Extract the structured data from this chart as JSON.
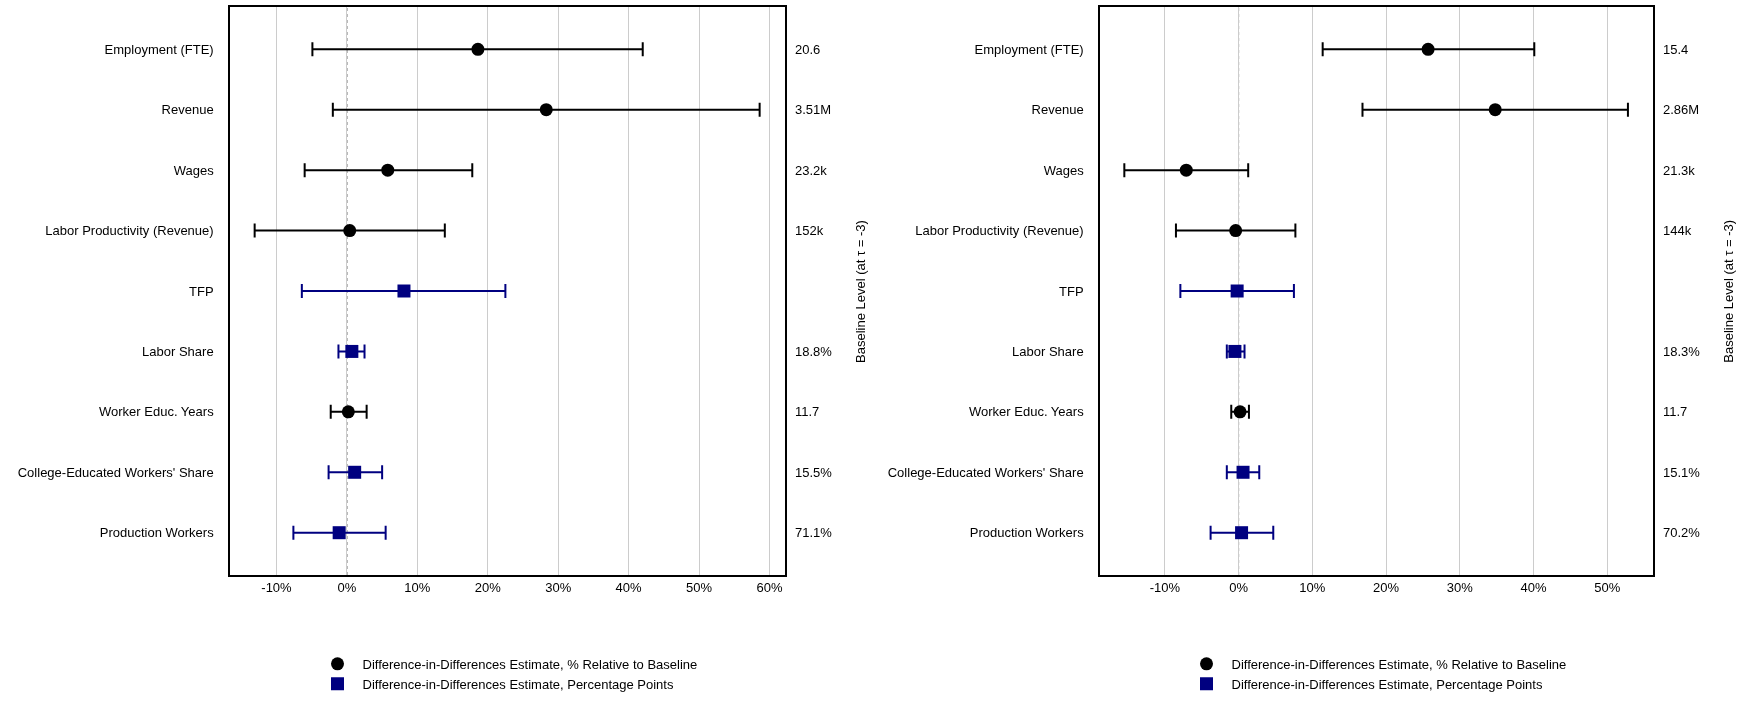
{
  "chart_data": [
    {
      "type": "scatter",
      "orientation": "horizontal",
      "categories": [
        "Employment (FTE)",
        "Revenue",
        "Wages",
        "Labor Productivity (Revenue)",
        "TFP",
        "Labor Share",
        "Worker Educ. Years",
        "College-Educated Workers' Share",
        "Production Workers"
      ],
      "series": [
        {
          "name": "Difference-in-Differences Estimate, % Relative to Baseline",
          "color": "#000000",
          "marker": "circle",
          "values": [
            18.6,
            28.3,
            5.8,
            0.4,
            null,
            null,
            0.2,
            null,
            null
          ],
          "errors": [
            [
              -4.9,
              42.0
            ],
            [
              -2.0,
              58.6
            ],
            [
              -6.0,
              17.8
            ],
            [
              -13.1,
              13.9
            ],
            null,
            null,
            [
              -2.3,
              2.8
            ],
            null,
            null
          ]
        },
        {
          "name": "Difference-in-Differences Estimate, Percentage Points",
          "color": "#000080",
          "marker": "square",
          "values": [
            null,
            null,
            null,
            null,
            8.1,
            0.7,
            null,
            1.1,
            -1.1
          ],
          "errors": [
            null,
            null,
            null,
            null,
            [
              -6.4,
              22.5
            ],
            [
              -1.2,
              2.5
            ],
            null,
            [
              -2.6,
              5.0
            ],
            [
              -7.6,
              5.5
            ]
          ]
        }
      ],
      "xlim": [
        -16.6,
        62.2
      ],
      "xticks": [
        {
          "value": -10,
          "label": "-10%"
        },
        {
          "value": 0,
          "label": "0%"
        },
        {
          "value": 10,
          "label": "10%"
        },
        {
          "value": 20,
          "label": "20%"
        },
        {
          "value": 30,
          "label": "30%"
        },
        {
          "value": 40,
          "label": "40%"
        },
        {
          "value": 50,
          "label": "50%"
        },
        {
          "value": 60,
          "label": "60%"
        }
      ],
      "ref_lines": [
        {
          "axis": "x",
          "value": 0,
          "color": "#555555",
          "line_style": "dotted"
        }
      ],
      "y2label": "Baseline Level (at τ = -3)",
      "y2_categories": [
        "20.6",
        "3.51M",
        "23.2k",
        "152k",
        null,
        "18.8%",
        "11.7",
        "15.5%",
        "71.1%"
      ],
      "grid": "x",
      "legend": "bottom"
    },
    {
      "type": "scatter",
      "orientation": "horizontal",
      "categories": [
        "Employment (FTE)",
        "Revenue",
        "Wages",
        "Labor Productivity (Revenue)",
        "TFP",
        "Labor Share",
        "Worker Educ. Years",
        "College-Educated Workers' Share",
        "Production Workers"
      ],
      "series": [
        {
          "name": "Difference-in-Differences Estimate, % Relative to Baseline",
          "color": "#000000",
          "marker": "circle",
          "values": [
            25.7,
            34.8,
            -7.1,
            -0.4,
            null,
            null,
            0.2,
            null,
            null
          ],
          "errors": [
            [
              11.4,
              40.1
            ],
            [
              16.8,
              52.8
            ],
            [
              -15.5,
              1.3
            ],
            [
              -8.5,
              7.7
            ],
            null,
            null,
            [
              -1.0,
              1.4
            ],
            null,
            null
          ]
        },
        {
          "name": "Difference-in-Differences Estimate, Percentage Points",
          "color": "#000080",
          "marker": "square",
          "values": [
            null,
            null,
            null,
            null,
            -0.2,
            -0.5,
            null,
            0.6,
            0.4
          ],
          "errors": [
            null,
            null,
            null,
            null,
            [
              -7.9,
              7.5
            ],
            [
              -1.6,
              0.8
            ],
            null,
            [
              -1.6,
              2.8
            ],
            [
              -3.8,
              4.7
            ]
          ]
        }
      ],
      "xlim": [
        -18.8,
        56.2
      ],
      "xticks": [
        {
          "value": -10,
          "label": "-10%"
        },
        {
          "value": 0,
          "label": "0%"
        },
        {
          "value": 10,
          "label": "10%"
        },
        {
          "value": 20,
          "label": "20%"
        },
        {
          "value": 30,
          "label": "30%"
        },
        {
          "value": 40,
          "label": "40%"
        },
        {
          "value": 50,
          "label": "50%"
        }
      ],
      "ref_lines": [
        {
          "axis": "x",
          "value": 0,
          "color": "#555555",
          "line_style": "dotted"
        }
      ],
      "y2label": "Baseline Level (at τ = -3)",
      "y2_categories": [
        "15.4",
        "2.86M",
        "21.3k",
        "144k",
        null,
        "18.3%",
        "11.7",
        "15.1%",
        "70.2%"
      ],
      "grid": "x",
      "legend": "bottom"
    }
  ]
}
